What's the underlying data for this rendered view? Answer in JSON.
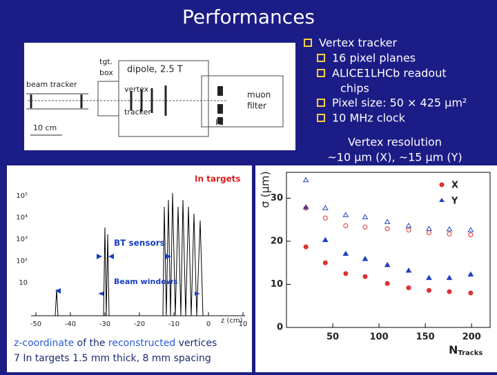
{
  "title": "Performances",
  "bullets": {
    "main": "Vertex tracker",
    "items": [
      "16 pixel planes",
      "ALICE1LHCb readout",
      "chips",
      "Pixel size: 50 × 425 μm²",
      "10 MHz clock"
    ]
  },
  "resolution": {
    "heading": "Vertex resolution",
    "text": "~10 μm (X), ~15 μm (Y)"
  },
  "detector_figure": {
    "beam_tracker": "beam tracker",
    "tgt": "tgt.",
    "box": "box",
    "dipole": "dipole, 2.5 T",
    "vertex": "vertex",
    "tracker": "tracker",
    "muon": "muon",
    "filter": "filter",
    "ic": "IC",
    "scale": "10 cm"
  },
  "z_histogram": {
    "yticks": [
      "10⁵",
      "10⁴",
      "10³",
      "10²",
      "10"
    ],
    "xticks": [
      -50,
      -40,
      -30,
      -20,
      -10,
      0,
      10
    ],
    "xlim": [
      -50,
      10
    ],
    "xlabel": "z (cm)",
    "in_targets": "In targets",
    "bt_sensors": "BT sensors",
    "beam_windows": "Beam windows"
  },
  "resolution_plot": {
    "type": "scatter",
    "ylabel": "σ (μm)",
    "xlabel": "N",
    "xlabel_sub": "Tracks",
    "xlim": [
      0,
      220
    ],
    "ylim": [
      0,
      36
    ],
    "xticks": [
      50,
      100,
      150,
      200
    ],
    "yticks": [
      0,
      10,
      20,
      30
    ],
    "x": [
      21,
      42,
      64,
      85,
      109,
      132,
      154,
      176,
      199
    ],
    "series": [
      {
        "name": "X",
        "color": "#e03030",
        "marker": "circle",
        "values": [
          18.7,
          15.0,
          12.5,
          11.8,
          10.2,
          9.2,
          8.6,
          8.3,
          8.0
        ]
      },
      {
        "name": "Y",
        "color": "#2040c0",
        "marker": "triangle",
        "values": [
          27.9,
          20.3,
          17.1,
          15.9,
          14.5,
          13.2,
          11.5,
          11.5,
          12.3
        ]
      },
      {
        "color": "#e03030",
        "marker": "open-circle",
        "values": [
          27.7,
          25.4,
          23.6,
          23.3,
          22.9,
          22.6,
          22.0,
          21.7,
          21.5
        ]
      },
      {
        "color": "#2040c0",
        "marker": "open-triangle",
        "values": [
          34.2,
          27.7,
          26.1,
          25.6,
          24.5,
          23.6,
          22.9,
          22.8,
          22.6
        ]
      }
    ]
  },
  "caption": {
    "line1": [
      "z-coordinate",
      " of the ",
      "reconstructed",
      " vertices"
    ],
    "line2": "7 In targets 1.5 mm thick, 8 mm spacing"
  }
}
